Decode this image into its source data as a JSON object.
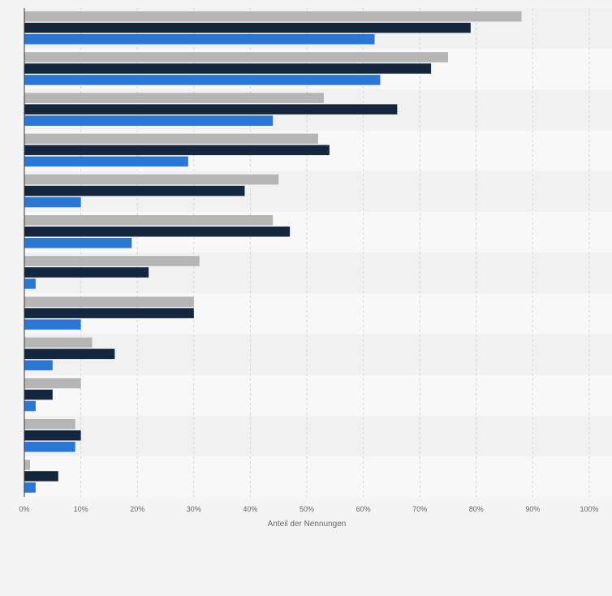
{
  "colors": {
    "page_bg": "#f4f4f4",
    "band_dark": "#f1f1f1",
    "band_light": "#f8f8f8",
    "grid": "#d6d6d6",
    "axis_line": "#333333",
    "tick_text": "#666666",
    "series": [
      "#b5b5b5",
      "#14273f",
      "#2a77d6"
    ]
  },
  "chart_data": {
    "type": "bar",
    "orientation": "horizontal",
    "categories": [
      "",
      "",
      "",
      "",
      "",
      "",
      "",
      "",
      "",
      "",
      "",
      ""
    ],
    "series": [
      {
        "values": [
          88,
          75,
          53,
          52,
          45,
          44,
          31,
          30,
          12,
          10,
          9,
          1
        ]
      },
      {
        "values": [
          79,
          72,
          66,
          54,
          39,
          47,
          22,
          30,
          16,
          5,
          10,
          6
        ]
      },
      {
        "values": [
          62,
          63,
          44,
          29,
          10,
          19,
          2,
          10,
          5,
          2,
          9,
          2
        ]
      }
    ],
    "xlim": [
      0,
      100
    ],
    "xticks": [
      "0%",
      "10%",
      "20%",
      "30%",
      "40%",
      "50%",
      "60%",
      "70%",
      "80%",
      "90%",
      "100%"
    ],
    "xlabel": "Anteil der Nennungen",
    "grid": true,
    "legend": false
  }
}
